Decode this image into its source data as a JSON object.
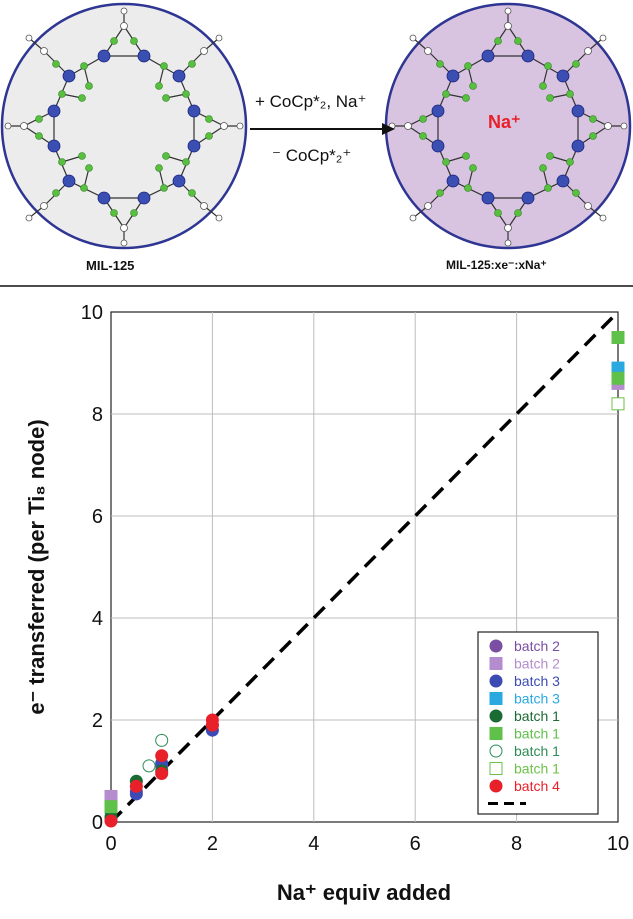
{
  "scheme": {
    "left_caption": "MIL-125",
    "right_caption": "MIL-125:xe⁻:xNa⁺",
    "center_ion_label": "Na⁺",
    "arrow_top_text": "+ CoCp*₂, Na⁺",
    "arrow_bottom_text": "⁻ CoCp*₂⁺",
    "colors": {
      "left_fill": "#ececec",
      "right_fill": "#d8c4e0",
      "ring": "#2e3592",
      "ti": "#3b4fb3",
      "o": "#57c13f",
      "na_text": "#e8202a"
    }
  },
  "chart_data": {
    "type": "scatter",
    "title": "",
    "xlabel": "Na⁺ equiv added",
    "ylabel": "e⁻ transferred (per Ti₈ node)",
    "xlim": [
      0,
      10
    ],
    "ylim": [
      0,
      10
    ],
    "xticks": [
      "0",
      "2",
      "4",
      "6",
      "8",
      "10"
    ],
    "yticks": [
      "0",
      "2",
      "4",
      "6",
      "8",
      "10"
    ],
    "grid": true,
    "legend_position": "bottom-right",
    "reference_line": {
      "style": "dashed",
      "color": "#000000",
      "x": [
        0,
        10
      ],
      "y": [
        0,
        10
      ]
    },
    "series": [
      {
        "name": "batch 2",
        "marker": "circle",
        "filled": true,
        "color": "#7a4ea3",
        "x": [
          0,
          0.5,
          1,
          2
        ],
        "y": [
          0.2,
          0.6,
          1.1,
          1.9
        ]
      },
      {
        "name": "batch 2",
        "marker": "square",
        "filled": true,
        "color": "#b58ccd",
        "x": [
          0,
          10
        ],
        "y": [
          0.5,
          8.6
        ]
      },
      {
        "name": "batch 3",
        "marker": "circle",
        "filled": true,
        "color": "#3c4bb4",
        "x": [
          0,
          0.5,
          1,
          2
        ],
        "y": [
          0.05,
          0.55,
          1.15,
          1.8
        ]
      },
      {
        "name": "batch 3",
        "marker": "square",
        "filled": true,
        "color": "#29a9e0",
        "x": [
          10
        ],
        "y": [
          8.9
        ]
      },
      {
        "name": "batch 1",
        "marker": "circle",
        "filled": true,
        "color": "#1b6b34",
        "x": [
          0,
          0.5,
          1
        ],
        "y": [
          0.1,
          0.8,
          1.0
        ]
      },
      {
        "name": "batch 1",
        "marker": "square",
        "filled": true,
        "color": "#5fc14a",
        "x": [
          0,
          10,
          10
        ],
        "y": [
          0.3,
          9.5,
          8.7
        ]
      },
      {
        "name": "batch 1",
        "marker": "circle",
        "filled": false,
        "color": "#2e8b57",
        "x": [
          0.75,
          1
        ],
        "y": [
          1.1,
          1.6
        ]
      },
      {
        "name": "batch 1",
        "marker": "square",
        "filled": false,
        "color": "#6cc24a",
        "x": [
          10
        ],
        "y": [
          8.2
        ]
      },
      {
        "name": "batch 4",
        "marker": "circle",
        "filled": true,
        "color": "#e8202a",
        "x": [
          0,
          0.5,
          1,
          1,
          2,
          2
        ],
        "y": [
          0.02,
          0.7,
          0.95,
          1.3,
          1.9,
          2.0
        ]
      }
    ]
  }
}
